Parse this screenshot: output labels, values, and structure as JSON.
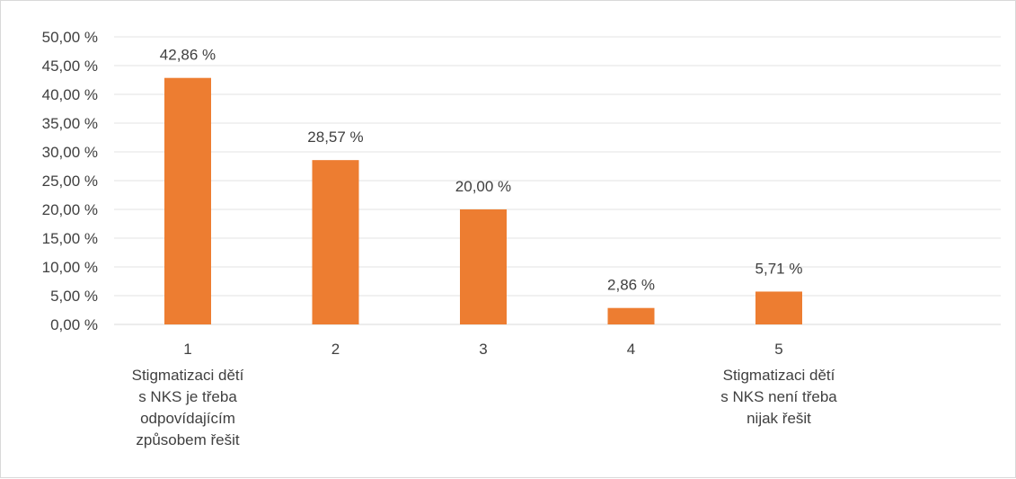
{
  "chart_data": {
    "type": "bar",
    "categories": [
      "1",
      "2",
      "3",
      "4",
      "5"
    ],
    "values": [
      42.86,
      28.57,
      20.0,
      2.86,
      5.71
    ],
    "data_labels": [
      "42,86 %",
      "28,57 %",
      "20,00 %",
      "2,86 %",
      "5,71 %"
    ],
    "y_ticks": [
      "0,00 %",
      "5,00 %",
      "10,00 %",
      "15,00 %",
      "20,00 %",
      "25,00 %",
      "30,00 %",
      "35,00 %",
      "40,00 %",
      "45,00 %",
      "50,00 %"
    ],
    "ylim": [
      0,
      50
    ],
    "grid": true,
    "bar_color": "#ed7d31",
    "annotations": [
      {
        "category": "1",
        "lines": [
          "Stigmatizaci dětí",
          "s NKS je třeba",
          "odpovídajícím",
          "způsobem řešit"
        ]
      },
      {
        "category": "5",
        "lines": [
          "Stigmatizaci dětí",
          "s NKS není třeba",
          "nijak řešit"
        ]
      }
    ]
  }
}
